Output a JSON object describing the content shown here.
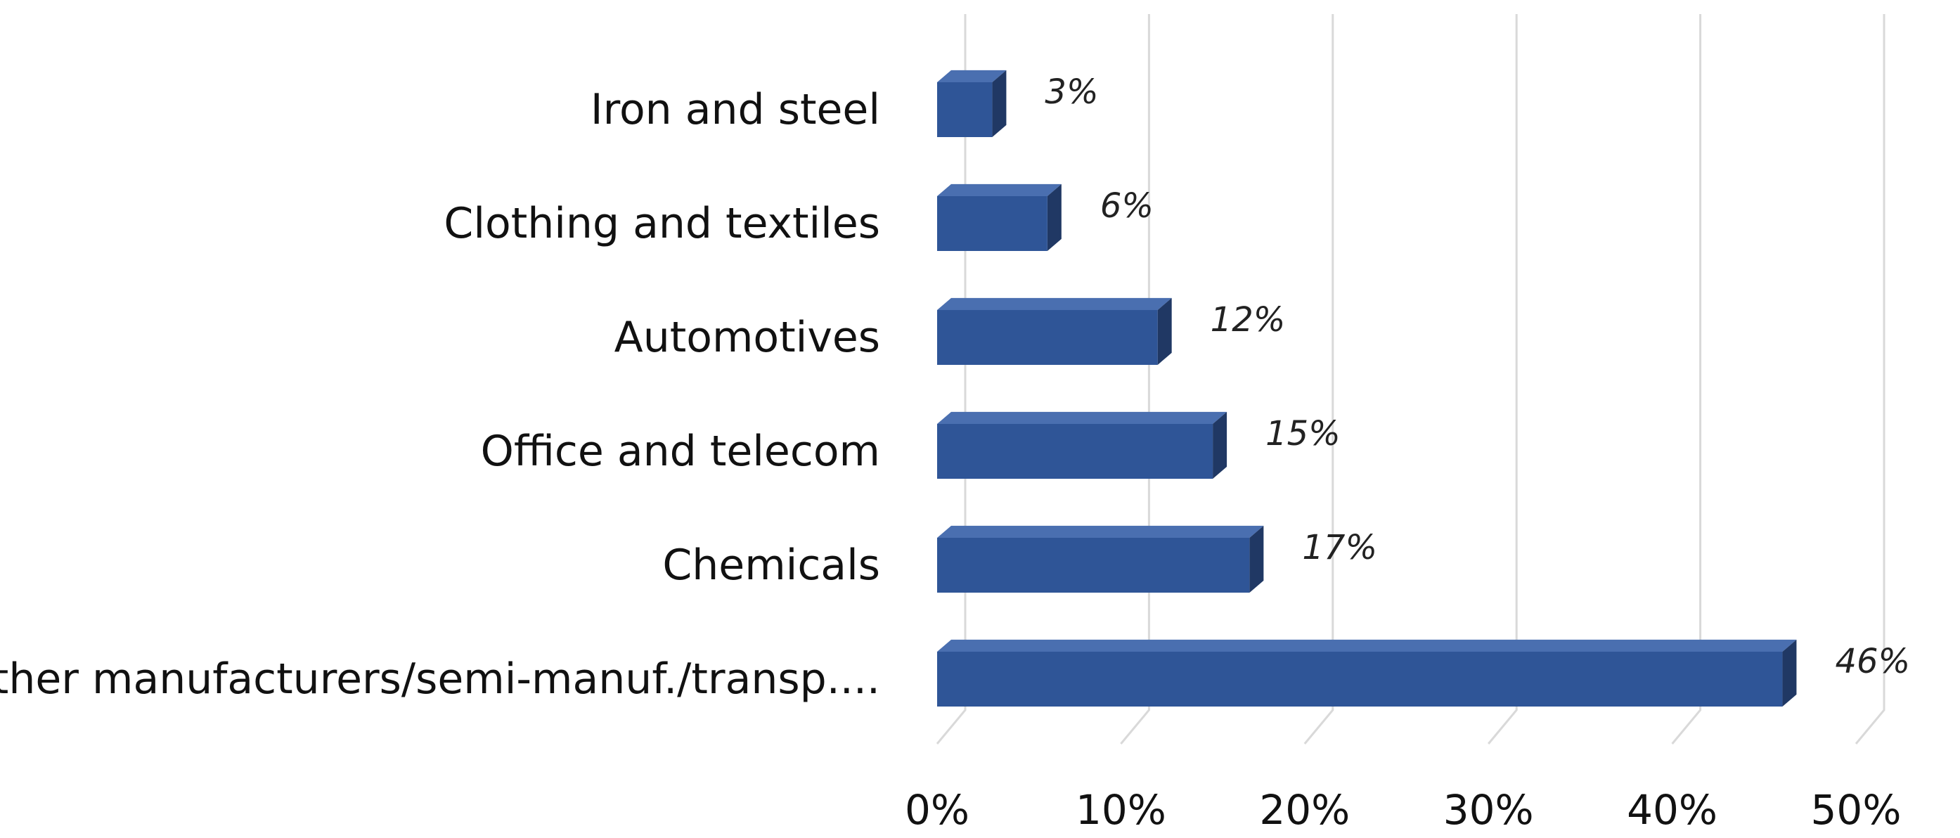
{
  "chart_data": {
    "type": "bar",
    "orientation": "horizontal",
    "style": "3d",
    "title": "",
    "xlabel": "",
    "ylabel": "",
    "categories": [
      "Iron and steel",
      "Clothing and textiles",
      "Automotives",
      "Office and telecom",
      "Chemicals",
      "Other manufacturers/semi-manuf./transp...."
    ],
    "values": [
      3,
      6,
      12,
      15,
      17,
      46
    ],
    "data_labels": [
      "3%",
      "6%",
      "12%",
      "15%",
      "17%",
      "46%"
    ],
    "xlim": [
      0,
      50
    ],
    "xticks": [
      0,
      10,
      20,
      30,
      40,
      50
    ],
    "xtick_labels": [
      "0%",
      "10%",
      "20%",
      "30%",
      "40%",
      "50%"
    ],
    "grid": true,
    "legend": "none",
    "colors": {
      "bar_front": "#2F5597",
      "bar_top": "#4A6FB0",
      "bar_side": "#203864",
      "grid": "#D9D9D9"
    }
  }
}
